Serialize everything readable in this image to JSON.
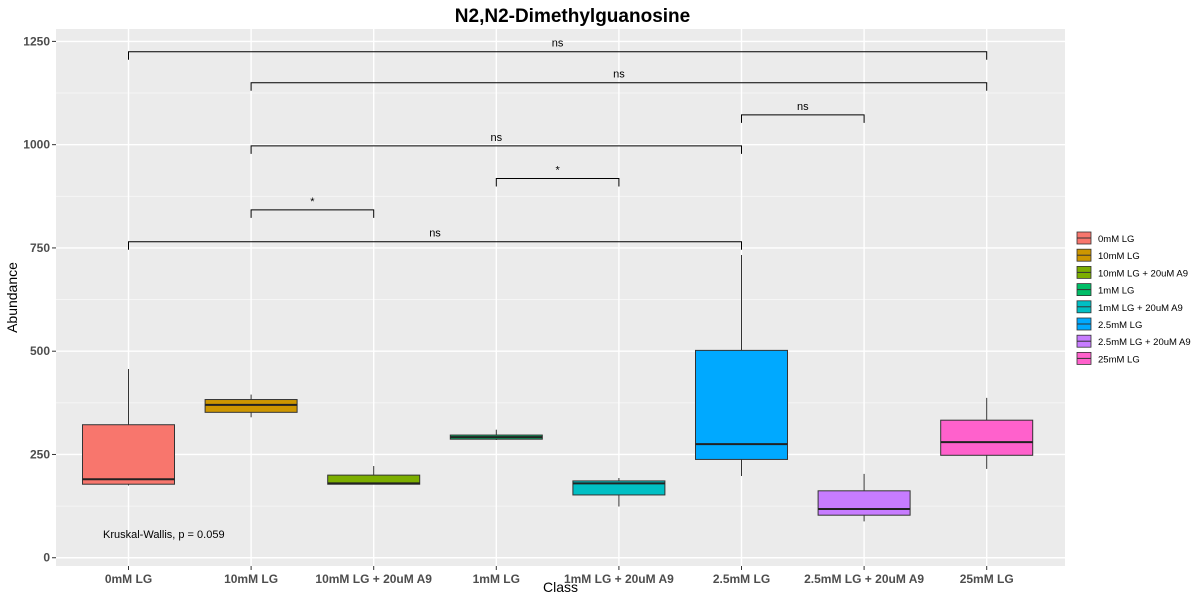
{
  "chart_data": {
    "type": "box",
    "title": "N2,N2-Dimethylguanosine",
    "xlabel": "Class",
    "ylabel": "Abundance",
    "ylim": [
      -20,
      1280
    ],
    "yticks": [
      0,
      250,
      500,
      750,
      1000,
      1250
    ],
    "grid": true,
    "legend_position": "right",
    "categories": [
      "0mM LG",
      "10mM LG",
      "10mM LG + 20uM A9",
      "1mM LG",
      "1mM LG + 20uM A9",
      "2.5mM LG",
      "2.5mM LG + 20uM A9",
      "25mM LG"
    ],
    "legend_entries": [
      "0mM LG",
      "10mM LG",
      "10mM LG + 20uM A9",
      "1mM LG",
      "1mM LG + 20uM A9",
      "2.5mM LG",
      "2.5mM LG + 20uM A9",
      "25mM LG"
    ],
    "series": [
      {
        "color": "#F8766D",
        "whisker_low": 175,
        "q1": 178,
        "median": 190,
        "q3": 322,
        "whisker_high": 457
      },
      {
        "color": "#CD9600",
        "whisker_low": 340,
        "q1": 352,
        "median": 370,
        "q3": 383,
        "whisker_high": 395
      },
      {
        "color": "#7CAE00",
        "whisker_low": 178,
        "q1": 178,
        "median": 180,
        "q3": 200,
        "whisker_high": 222
      },
      {
        "color": "#00BE67",
        "whisker_low": 285,
        "q1": 287,
        "median": 292,
        "q3": 297,
        "whisker_high": 310
      },
      {
        "color": "#00BFC4",
        "whisker_low": 124,
        "q1": 152,
        "median": 180,
        "q3": 186,
        "whisker_high": 193
      },
      {
        "color": "#00A9FF",
        "whisker_low": 198,
        "q1": 238,
        "median": 275,
        "q3": 502,
        "whisker_high": 733
      },
      {
        "color": "#C77CFF",
        "whisker_low": 88,
        "q1": 103,
        "median": 118,
        "q3": 162,
        "whisker_high": 203
      },
      {
        "color": "#FF61CC",
        "whisker_low": 215,
        "q1": 248,
        "median": 280,
        "q3": 333,
        "whisker_high": 387
      }
    ],
    "comparisons": [
      {
        "from": 0,
        "to": 7,
        "y": 1225,
        "label": "ns"
      },
      {
        "from": 1,
        "to": 7,
        "y": 1150,
        "label": "ns"
      },
      {
        "from": 5,
        "to": 6,
        "y": 1072,
        "label": "ns"
      },
      {
        "from": 1,
        "to": 5,
        "y": 997,
        "label": "ns"
      },
      {
        "from": 3,
        "to": 4,
        "y": 918,
        "label": "*"
      },
      {
        "from": 1,
        "to": 2,
        "y": 842,
        "label": "*"
      },
      {
        "from": 0,
        "to": 5,
        "y": 765,
        "label": "ns"
      }
    ],
    "annotation": "Kruskal-Wallis, p = 0.059"
  }
}
